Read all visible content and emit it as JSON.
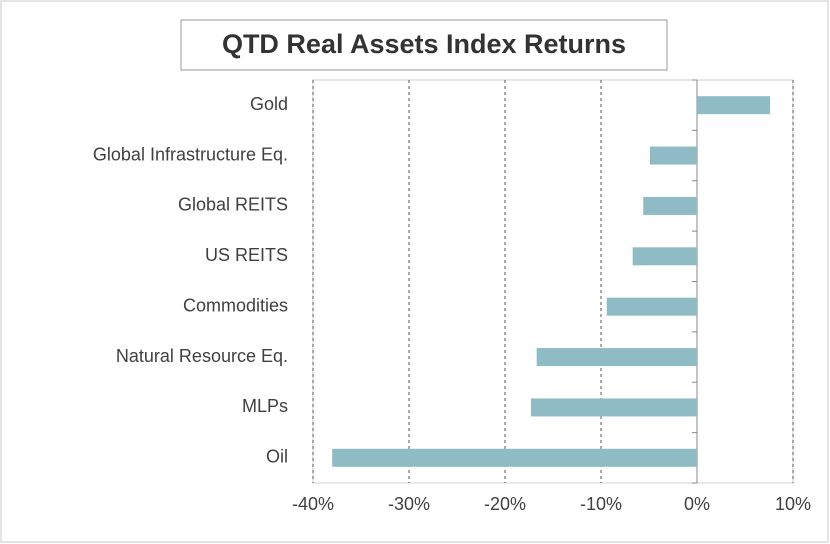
{
  "chart_data": {
    "type": "bar",
    "orientation": "horizontal",
    "title": "QTD Real Assets Index Returns",
    "categories": [
      "Gold",
      "Global Infrastructure Eq.",
      "Global REITS",
      "US REITS",
      "Commodities",
      "Natural Resource Eq.",
      "MLPs",
      "Oil"
    ],
    "values": [
      7.6,
      -4.9,
      -5.6,
      -6.7,
      -9.4,
      -16.7,
      -17.3,
      -38.0
    ],
    "color": "#8fbcc4",
    "xlim": [
      -40,
      10
    ],
    "xticks": [
      {
        "value": -40,
        "label": "-40%"
      },
      {
        "value": -30,
        "label": "-30%"
      },
      {
        "value": -20,
        "label": "-20%"
      },
      {
        "value": -10,
        "label": "-10%"
      },
      {
        "value": 0,
        "label": "0%"
      },
      {
        "value": 10,
        "label": "10%"
      }
    ],
    "grid": true
  }
}
